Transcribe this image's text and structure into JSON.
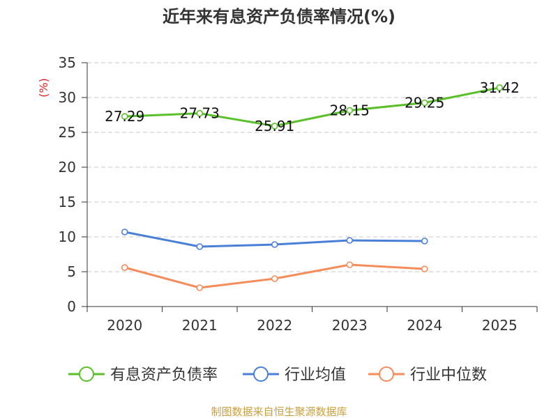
{
  "chart_data": {
    "type": "line",
    "title": "近年来有息资产负债率情况(%)",
    "unit_label": "(%)",
    "categories": [
      "2020",
      "2021",
      "2022",
      "2023",
      "2024",
      "2025"
    ],
    "ylim": [
      0,
      35
    ],
    "yticks": [
      "0",
      "5",
      "10",
      "15",
      "20",
      "25",
      "30",
      "35"
    ],
    "grid": true,
    "legend_position": "bottom",
    "series": [
      {
        "name": "有息资产负债率",
        "color": "#5ac02a",
        "values": [
          27.29,
          27.73,
          25.91,
          28.15,
          29.25,
          31.42
        ],
        "labels": [
          "27.29",
          "27.73",
          "25.91",
          "28.15",
          "29.25",
          "31.42"
        ],
        "show_labels": true
      },
      {
        "name": "行业均值",
        "color": "#4a7fd8",
        "values": [
          10.7,
          8.6,
          8.9,
          9.5,
          9.4,
          null
        ],
        "show_labels": false
      },
      {
        "name": "行业中位数",
        "color": "#f58c5a",
        "values": [
          5.6,
          2.7,
          4.0,
          6.0,
          5.4,
          null
        ],
        "show_labels": false
      }
    ]
  },
  "source": "制图数据来自恒生聚源数据库"
}
